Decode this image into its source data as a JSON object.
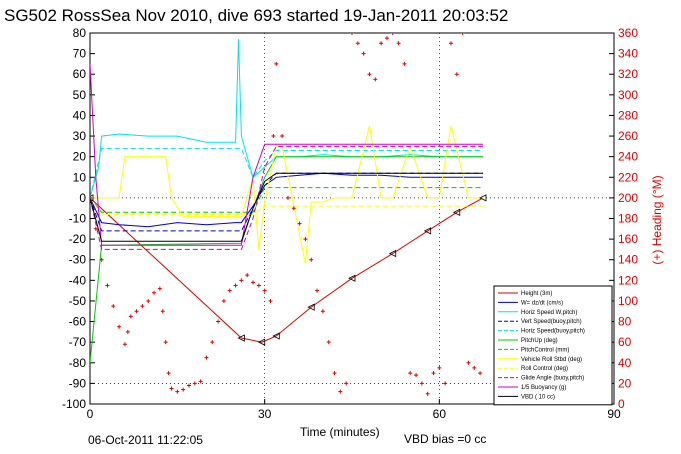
{
  "title": "SG502 RossSea Nov 2010, dive 693 started 19-Jan-2011 20:03:52",
  "footer": {
    "date": "06-Oct-2011 11:22:05",
    "vbd_bias": "VBD bias =0 cc"
  },
  "chart_data": {
    "type": "line",
    "xlabel": "Time (minutes)",
    "ylabel_right": "(+) Heading (°M)",
    "xlim": [
      0,
      90
    ],
    "ylim": [
      -100,
      80
    ],
    "ylim_right": [
      0,
      360
    ],
    "x_ticks": [
      "0",
      "30",
      "60",
      "90"
    ],
    "y_ticks": [
      "80",
      "70",
      "60",
      "50",
      "40",
      "30",
      "20",
      "10",
      "0",
      "-10",
      "-20",
      "-30",
      "-40",
      "-50",
      "-60",
      "-70",
      "-80",
      "-90",
      "-100"
    ],
    "y_ticks_right": [
      "360",
      "340",
      "320",
      "300",
      "280",
      "260",
      "240",
      "220",
      "200",
      "180",
      "160",
      "140",
      "120",
      "100",
      "80",
      "60",
      "40",
      "20",
      "0"
    ],
    "grid": true,
    "legend_position": "bottom-right",
    "colors": {
      "red": "#e00000",
      "blue": "#0000cc",
      "cyan": "#00e5e5",
      "green": "#00cc00",
      "yellow": "#ffff00",
      "magenta": "#cc00cc",
      "black": "#000000"
    },
    "legend": [
      {
        "label": "Height (3m)",
        "color": "#e00000",
        "dash": false
      },
      {
        "label": "W= dz/dt (cm/s)",
        "color": "#0000cc",
        "dash": false
      },
      {
        "label": "Horiz Speed W,pitch)",
        "color": "#00e5e5",
        "dash": false
      },
      {
        "label": "Vert Speed(buoy,pitch)",
        "color": "#0000cc",
        "dash": true
      },
      {
        "label": "Horiz Speed(buoy,pitch)",
        "color": "#00e5e5",
        "dash": true
      },
      {
        "label": "PitchUp (deg)",
        "color": "#00cc00",
        "dash": false
      },
      {
        "label": "PitchControl (mm)",
        "color": "#00cc00",
        "dash": true
      },
      {
        "label": "Vehicle Roll Stbd (deg)",
        "color": "#ffff00",
        "dash": false
      },
      {
        "label": "Roll Control (deg)",
        "color": "#ffff00",
        "dash": true
      },
      {
        "label": "Glide Angle (buoy,pitch)",
        "color": "#cc00cc",
        "dash": true
      },
      {
        "label": "1/5 Buoyancy (g)",
        "color": "#cc00cc",
        "dash": false
      },
      {
        "label": "VBD ( 10 cc)",
        "color": "#000000",
        "dash": false
      }
    ],
    "series": [
      {
        "name": "Height (3m)",
        "color": "#e00000",
        "x": [
          0,
          26,
          29.5,
          32,
          38,
          45,
          52,
          58,
          63,
          67.5
        ],
        "y": [
          0,
          -68,
          -70,
          -67,
          -53,
          -39,
          -27,
          -16,
          -7,
          0
        ]
      },
      {
        "name": "W= dz/dt (cm/s)",
        "color": "#0000cc",
        "x": [
          0,
          2,
          5,
          10,
          15,
          20,
          25,
          26,
          28,
          30,
          32,
          36,
          40,
          45,
          50,
          55,
          60,
          64,
          67.5
        ],
        "y": [
          0,
          -12,
          -13,
          -14,
          -12,
          -13,
          -12,
          -12,
          -4,
          6,
          10,
          11,
          12,
          11,
          11,
          10,
          10,
          10,
          10
        ]
      },
      {
        "name": "Horiz Speed W,pitch)",
        "color": "#00e5e5",
        "x": [
          0,
          1.5,
          2,
          5,
          10,
          15,
          20,
          25,
          25.5,
          26,
          27,
          28,
          30,
          32,
          36,
          40,
          45,
          50,
          55,
          60,
          64,
          67.5
        ],
        "y": [
          0,
          15,
          30,
          31,
          30,
          30,
          27,
          27,
          77,
          30,
          20,
          10,
          15,
          20,
          20,
          21,
          20,
          20,
          21,
          20,
          20,
          20
        ]
      },
      {
        "name": "Vert Speed(buoy,pitch)",
        "color": "#0000cc",
        "x": [
          0,
          2,
          26,
          28,
          30,
          32,
          67.5
        ],
        "y": [
          0,
          -16,
          -16,
          -5,
          6,
          12,
          12
        ]
      },
      {
        "name": "Horiz Speed(buoy,pitch)",
        "color": "#00e5e5",
        "x": [
          0,
          2,
          26,
          28,
          30,
          32,
          67.5
        ],
        "y": [
          0,
          24,
          24,
          10,
          18,
          23,
          23
        ]
      },
      {
        "name": "PitchUp (deg)",
        "color": "#00cc00",
        "x": [
          0,
          2,
          26,
          28,
          30,
          32,
          67.5
        ],
        "y": [
          -80,
          -23,
          -22,
          -5,
          10,
          20,
          20
        ]
      },
      {
        "name": "PitchControl (mm)",
        "color": "#00cc00",
        "x": [
          0,
          2,
          26,
          28,
          30,
          32,
          67.5
        ],
        "y": [
          0,
          -7,
          -7,
          -7,
          5,
          5,
          5
        ]
      },
      {
        "name": "Vehicle Roll Stbd (deg)",
        "color": "#ffff00",
        "x": [
          0,
          2,
          5,
          6,
          13,
          14,
          16,
          25,
          26,
          28,
          29,
          30,
          32,
          33,
          37,
          38,
          40,
          42,
          45,
          48,
          50,
          52,
          55,
          58,
          60,
          62,
          65,
          67.5
        ],
        "y": [
          0,
          0,
          0,
          20,
          20,
          0,
          -9,
          -9,
          -9,
          10,
          -25,
          -2,
          25,
          25,
          -32,
          -2,
          -2,
          0,
          0,
          35,
          0,
          0,
          25,
          0,
          0,
          35,
          0,
          0
        ]
      },
      {
        "name": "Roll Control (deg)",
        "color": "#ffff00",
        "x": [
          0,
          2,
          26,
          28,
          30,
          67.5
        ],
        "y": [
          0,
          -8,
          -8,
          -8,
          -4,
          -4
        ]
      },
      {
        "name": "Glide Angle (buoy,pitch)",
        "color": "#cc00cc",
        "x": [
          0,
          2,
          26,
          28,
          30,
          32,
          67.5
        ],
        "y": [
          0,
          -25,
          -25,
          -10,
          15,
          25,
          25
        ]
      },
      {
        "name": "1/5 Buoyancy (g)",
        "color": "#cc00cc",
        "x": [
          0,
          1,
          2,
          26,
          28,
          30,
          32,
          67.5
        ],
        "y": [
          65,
          10,
          -23,
          -23,
          10,
          26,
          26,
          26
        ]
      },
      {
        "name": "VBD ( 10 cc)",
        "color": "#000000",
        "x": [
          0,
          2,
          26,
          28,
          30,
          32,
          67.5
        ],
        "y": [
          0,
          -21,
          -21,
          -5,
          8,
          12,
          12
        ]
      }
    ],
    "heading_points_deg": {
      "name": "(+) Heading (°M)",
      "color": "#e00000",
      "x": [
        0,
        1,
        2,
        3,
        4,
        5,
        6,
        6.5,
        7,
        8,
        9,
        10,
        11,
        12,
        12.5,
        13,
        13.5,
        14,
        15,
        16,
        17,
        18,
        19,
        20,
        21,
        22,
        23,
        24,
        25,
        26,
        27,
        28,
        29,
        30,
        31,
        31.5,
        32,
        33,
        34,
        35,
        36,
        37,
        38,
        39,
        40,
        41,
        42,
        43,
        44,
        45,
        46,
        47,
        48,
        49,
        50,
        51,
        52,
        53,
        54,
        55,
        56,
        57,
        58,
        59,
        60,
        61,
        62,
        63,
        64,
        65,
        66,
        67
      ],
      "y": [
        200,
        170,
        140,
        115,
        95,
        75,
        58,
        70,
        85,
        90,
        95,
        100,
        108,
        112,
        90,
        60,
        30,
        15,
        12,
        14,
        18,
        20,
        22,
        45,
        60,
        80,
        100,
        110,
        115,
        120,
        125,
        118,
        115,
        110,
        100,
        260,
        330,
        260,
        200,
        190,
        175,
        160,
        140,
        110,
        90,
        60,
        30,
        12,
        20,
        360,
        350,
        340,
        320,
        315,
        350,
        355,
        360,
        350,
        330,
        30,
        28,
        20,
        10,
        30,
        35,
        20,
        350,
        320,
        360,
        40,
        35,
        30
      ]
    }
  }
}
